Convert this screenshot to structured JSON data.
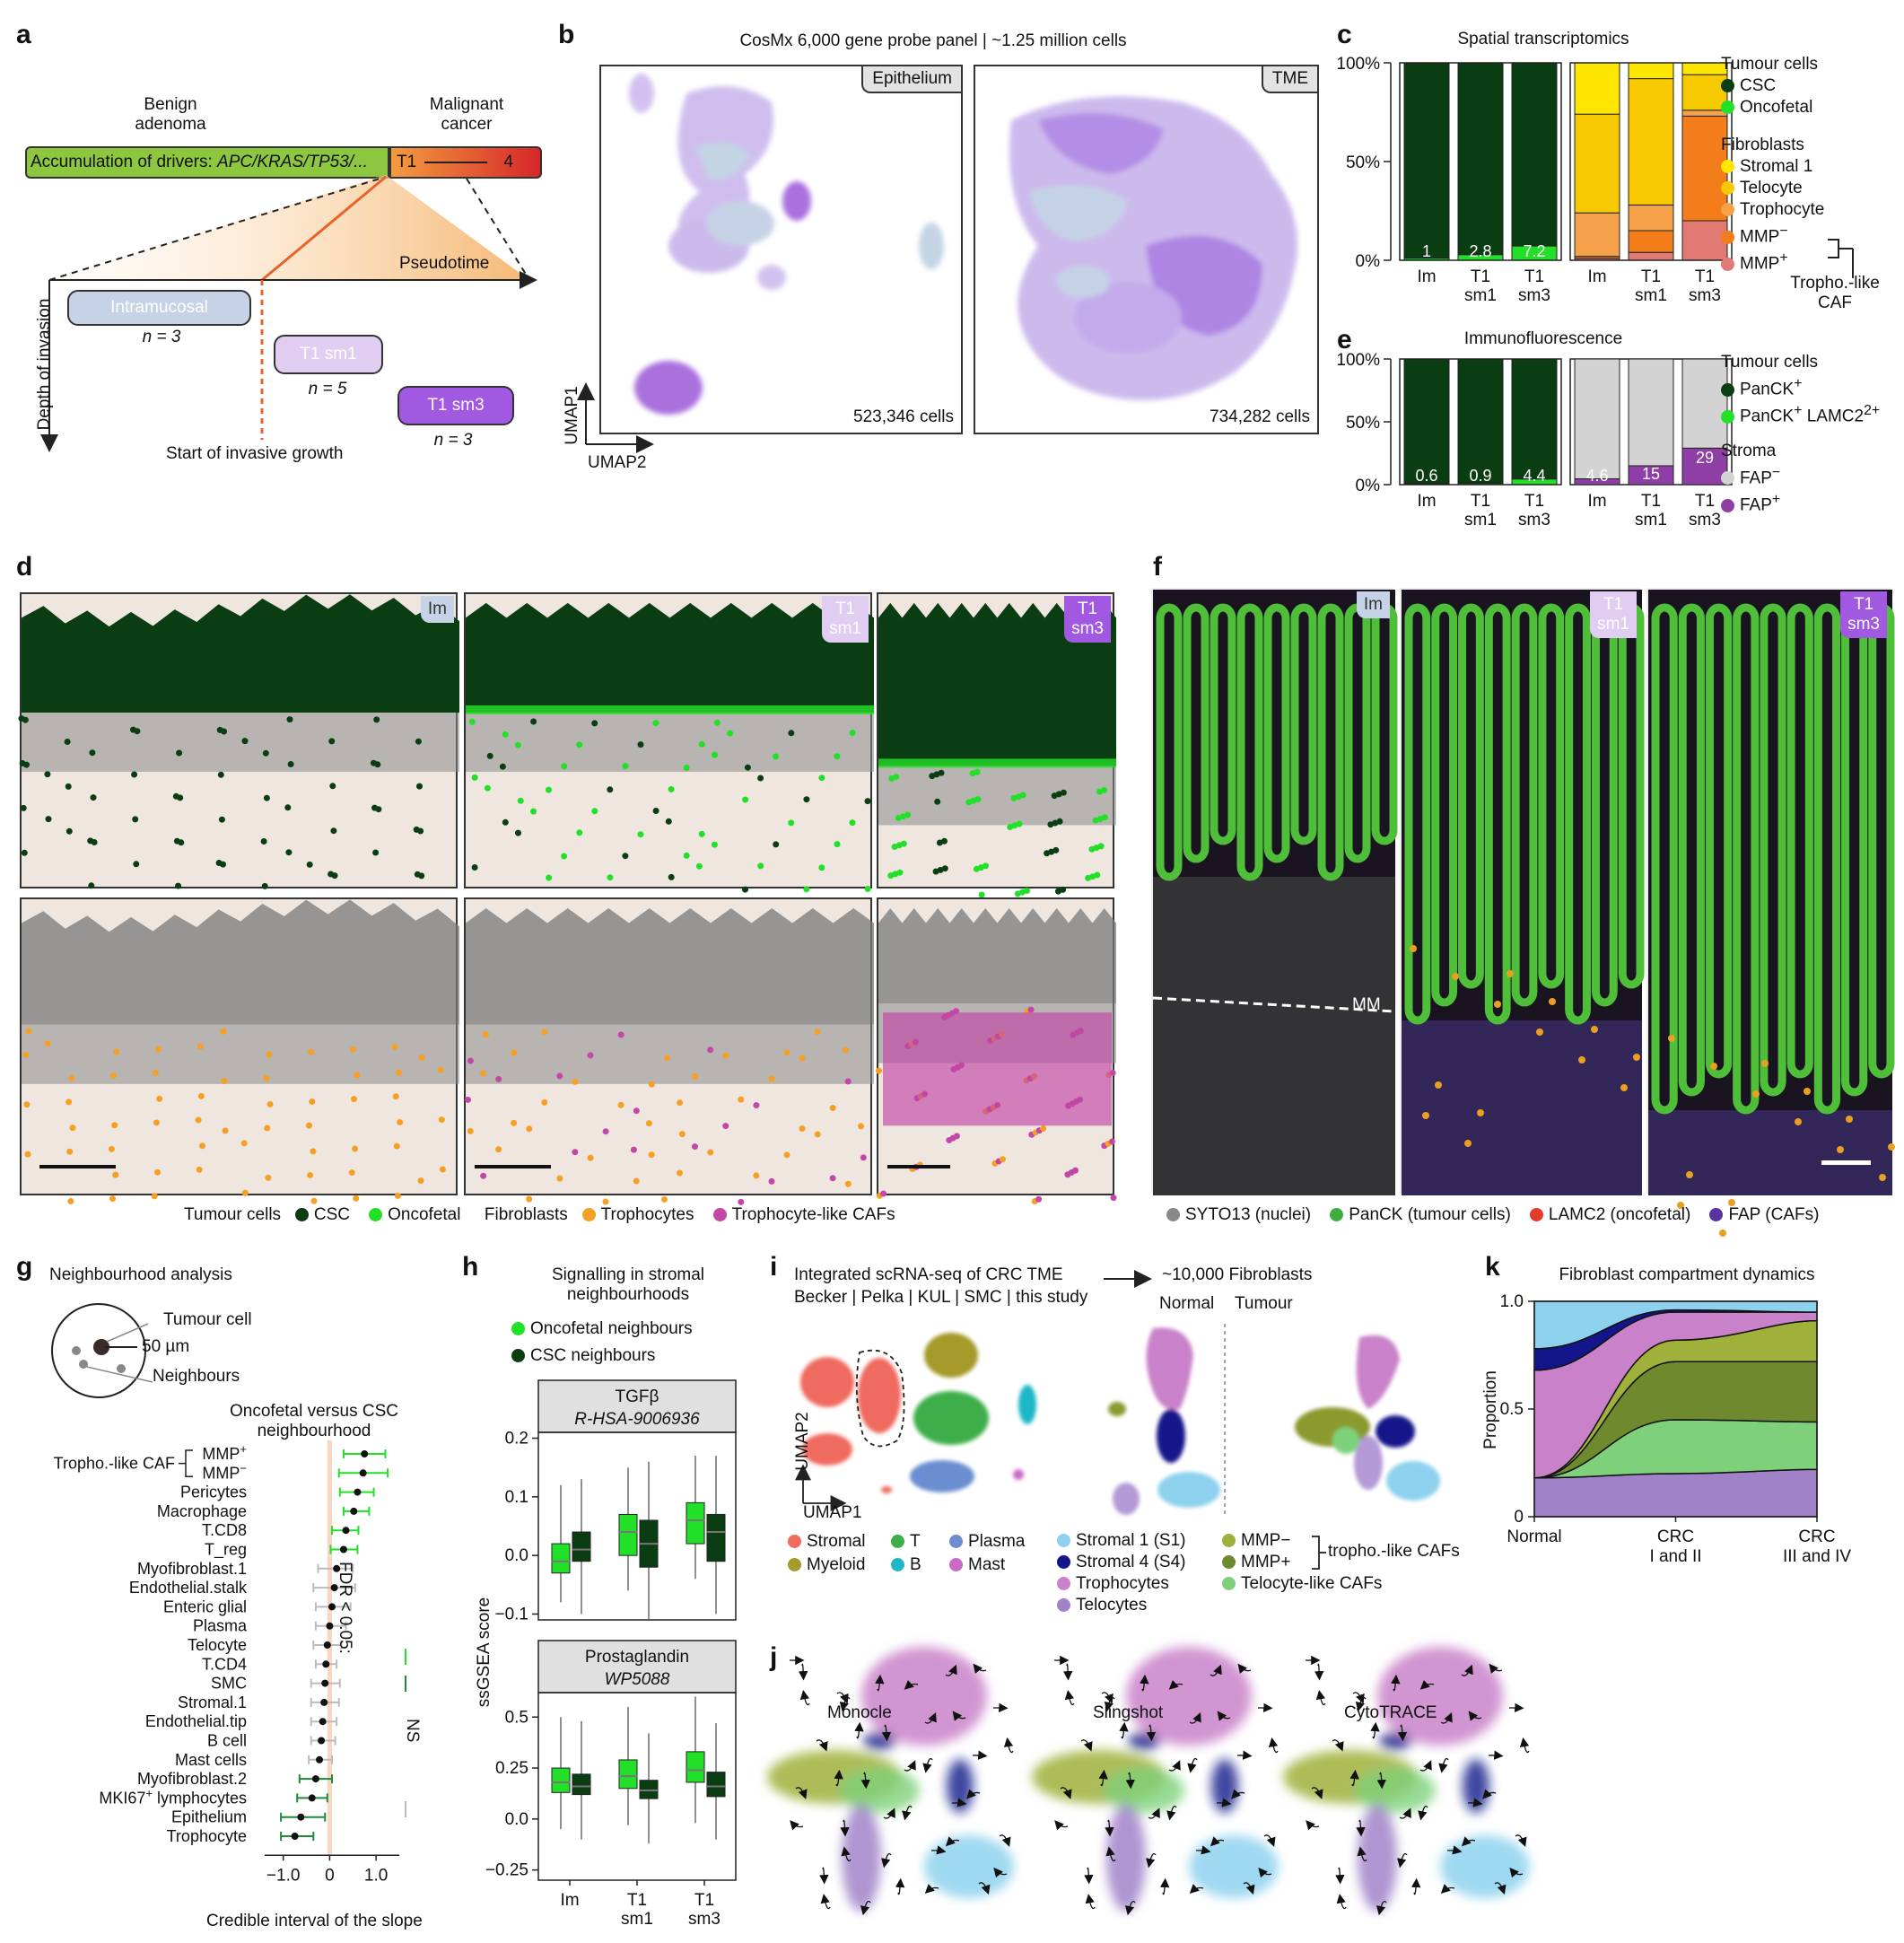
{
  "panels": {
    "a": "a",
    "b": "b",
    "c": "c",
    "d": "d",
    "e": "e",
    "f": "f",
    "g": "g",
    "h": "h",
    "i": "i",
    "j": "j",
    "k": "k"
  },
  "a": {
    "benign_1": "Benign",
    "benign_2": "adenoma",
    "malig_1": "Malignant",
    "malig_2": "cancer",
    "drivers_prefix": "Accumulation of drivers: ",
    "drivers_genes": "APC/KRAS/TP53/...",
    "t1": "T1",
    "stage4": "4",
    "pseudotime": "Pseudotime",
    "depth": "Depth of invasion",
    "intramucosal": "Intramucosal",
    "n_im": "n = 3",
    "t1sm1": "T1 sm1",
    "n_sm1": "n = 5",
    "t1sm3": "T1 sm3",
    "n_sm3": "n = 3",
    "start": "Start of invasive growth"
  },
  "b": {
    "title": "CosMx 6,000 gene probe panel | ~1.25 million cells",
    "epi_tag": "Epithelium",
    "tme_tag": "TME",
    "epi_cells": "523,346 cells",
    "tme_cells": "734,282 cells",
    "umap1": "UMAP1",
    "umap2": "UMAP2"
  },
  "c": {
    "title": "Spatial transcriptomics",
    "y_ticks": [
      "100%",
      "50%",
      "0%"
    ],
    "x_labels": [
      "Im",
      "T1\nsm1",
      "T1\nsm3"
    ],
    "tumour_labels": [
      "1",
      "2.8",
      "7.2"
    ],
    "legend_tumour_title": "Tumour cells",
    "legend_tumour": [
      "CSC",
      "Oncofetal"
    ],
    "legend_fib_title": "Fibroblasts",
    "legend_fib": [
      "Stromal 1",
      "Telocyte",
      "Trophocyte",
      "MMP",
      "MMP"
    ],
    "mmp_sup": [
      "−",
      "+"
    ],
    "tropho_like_1": "Tropho.-like",
    "tropho_like_2": "CAF"
  },
  "e": {
    "title": "Immunofluorescence",
    "y_ticks": [
      "100%",
      "50%",
      "0%"
    ],
    "tumour_labels": [
      "0.6",
      "0.9",
      "4.4"
    ],
    "stroma_labels": [
      "4.6",
      "15",
      "29"
    ],
    "legend_tumour_title": "Tumour cells",
    "legend_tumour_1": "PanCK",
    "legend_tumour_2": "PanCK",
    "legend_tumour_2b": " LAMC2",
    "legend_stroma_title": "Stroma",
    "legend_stroma": [
      "FAP",
      "FAP"
    ]
  },
  "d": {
    "tags": [
      "Im",
      "T1\nsm1",
      "T1\nsm3"
    ],
    "legend_tumour": "Tumour cells",
    "legend_csc": "CSC",
    "legend_onco": "Oncofetal",
    "legend_fib": "Fibroblasts",
    "legend_tropho": "Trophocytes",
    "legend_tlcaf": "Trophocyte-like CAFs"
  },
  "f": {
    "tags": [
      "Im",
      "T1\nsm1",
      "T1\nsm3"
    ],
    "mm": "MM",
    "legend": [
      "SYTO13 (nuclei)",
      "PanCK (tumour cells)",
      "LAMC2 (oncofetal)",
      "FAP (CAFs)"
    ]
  },
  "g": {
    "title": "Neighbourhood analysis",
    "tumour_cell": "Tumour cell",
    "radius": "50 µm",
    "neighbours": "Neighbours",
    "subtitle_1": "Oncofetal versus CSC",
    "subtitle_2": "neighbourhood",
    "tropho_like": "Tropho.-like CAF",
    "fdr": "FDR < 0.05:",
    "ns": "NS",
    "xlabel": "Credible interval of the slope"
  },
  "h": {
    "title_1": "Signalling in stromal",
    "title_2": "neighbourhoods",
    "legend_onco": "Oncofetal neighbours",
    "legend_csc": "CSC neighbours",
    "ylabel": "ssGSEA score"
  },
  "i": {
    "title_1": "Integrated scRNA-seq of CRC TME",
    "title_2": "Becker | Pelka | KUL | SMC | this study",
    "fib_title": "~10,000 Fibroblasts",
    "normal": "Normal",
    "tumour": "Tumour",
    "umap2": "UMAP2",
    "umap1": "UMAP1",
    "legend_left": [
      "Stromal",
      "T",
      "Plasma",
      "Myeloid",
      "B",
      "Mast"
    ],
    "legend_right": [
      "Stromal 1 (S1)",
      "Stromal 4 (S4)",
      "Trophocytes",
      "Telocytes",
      "MMP−",
      "MMP+",
      "Telocyte-like CAFs"
    ],
    "tropho_bracket": "tropho.-like CAFs"
  },
  "j": {
    "methods": [
      "Monocle",
      "Slingshot",
      "CytoTRACE"
    ]
  },
  "k": {
    "title": "Fibroblast compartment dynamics",
    "ylabel": "Proportion"
  },
  "colors": {
    "csc": "#0b3d13",
    "onco": "#22e028",
    "stromal1": "#ffe600",
    "telocyte": "#f6c900",
    "trophocyte": "#f5a24a",
    "mmp_minus": "#f27d1a",
    "mmp_plus": "#e07a72",
    "fap_neg": "#d3d3d3",
    "fap_pos": "#8e3fa6",
    "im": "#c6d3e6",
    "sm1": "#e2cdf2",
    "sm3": "#a259e2"
  },
  "chart_data": [
    {
      "type": "bar",
      "panel": "c-tumour",
      "title": "Spatial transcriptomics",
      "categories": [
        "Im",
        "T1 sm1",
        "T1 sm3"
      ],
      "series": [
        {
          "name": "CSC",
          "values": [
            99.0,
            97.2,
            92.8
          ]
        },
        {
          "name": "Oncofetal",
          "values": [
            1.0,
            2.8,
            7.2
          ]
        }
      ],
      "ylim": [
        0,
        100
      ]
    },
    {
      "type": "bar",
      "panel": "c-fibroblasts",
      "categories": [
        "Im",
        "T1 sm1",
        "T1 sm3"
      ],
      "series": [
        {
          "name": "MMP+",
          "values": [
            1,
            4,
            20
          ]
        },
        {
          "name": "MMP−",
          "values": [
            1,
            11,
            53
          ]
        },
        {
          "name": "Trophocyte",
          "values": [
            22,
            13,
            3
          ]
        },
        {
          "name": "Telocyte",
          "values": [
            50,
            64,
            18
          ]
        },
        {
          "name": "Stromal 1",
          "values": [
            26,
            8,
            6
          ]
        }
      ],
      "ylim": [
        0,
        100
      ]
    },
    {
      "type": "bar",
      "panel": "e-tumour",
      "title": "Immunofluorescence",
      "categories": [
        "Im",
        "T1 sm1",
        "T1 sm3"
      ],
      "series": [
        {
          "name": "PanCK+",
          "values": [
            99.4,
            99.1,
            95.6
          ]
        },
        {
          "name": "PanCK+ LAMC2+",
          "values": [
            0.6,
            0.9,
            4.4
          ]
        }
      ],
      "ylim": [
        0,
        100
      ]
    },
    {
      "type": "bar",
      "panel": "e-stroma",
      "categories": [
        "Im",
        "T1 sm1",
        "T1 sm3"
      ],
      "series": [
        {
          "name": "FAP−",
          "values": [
            95.4,
            85,
            71
          ]
        },
        {
          "name": "FAP+",
          "values": [
            4.6,
            15,
            29
          ]
        }
      ],
      "ylim": [
        0,
        100
      ]
    },
    {
      "type": "scatter",
      "panel": "g",
      "categories": [
        "MMP+",
        "MMP−",
        "Pericytes",
        "Macrophage",
        "T.CD8",
        "T_reg",
        "Myofibroblast.1",
        "Endothelial.stalk",
        "Enteric glial",
        "Plasma",
        "Telocyte",
        "T.CD4",
        "SMC",
        "Stromal.1",
        "Endothelial.tip",
        "B cell",
        "Mast cells",
        "Myofibroblast.2",
        "MKI67+ lymphocytes",
        "Epithelium",
        "Trophocyte"
      ],
      "estimate": [
        0.75,
        0.72,
        0.6,
        0.52,
        0.35,
        0.3,
        0.15,
        0.1,
        0.05,
        0.0,
        -0.05,
        -0.08,
        -0.1,
        -0.12,
        -0.15,
        -0.18,
        -0.22,
        -0.3,
        -0.38,
        -0.62,
        -0.75
      ],
      "lower": [
        0.3,
        0.2,
        0.22,
        0.3,
        0.05,
        0.02,
        -0.25,
        -0.35,
        -0.3,
        -0.3,
        -0.35,
        -0.3,
        -0.4,
        -0.4,
        -0.4,
        -0.4,
        -0.45,
        -0.65,
        -0.7,
        -1.05,
        -1.05
      ],
      "upper": [
        1.2,
        1.25,
        0.95,
        0.85,
        0.62,
        0.6,
        0.5,
        0.55,
        0.45,
        0.35,
        0.25,
        0.15,
        0.22,
        0.2,
        0.15,
        0.12,
        0.05,
        0.05,
        -0.05,
        -0.1,
        -0.35
      ],
      "significant": [
        true,
        true,
        true,
        true,
        true,
        true,
        false,
        false,
        false,
        false,
        false,
        false,
        false,
        false,
        false,
        false,
        false,
        true,
        true,
        true,
        true
      ],
      "xticks": [
        -1.0,
        0,
        1.0
      ],
      "xlim": [
        -1.4,
        1.5
      ],
      "xlabel": "Credible interval of the slope"
    },
    {
      "type": "bar",
      "panel": "h-tgfb",
      "title": "TGFβ",
      "subtitle": "R-HSA-9006936",
      "categories": [
        "Im",
        "T1 sm1",
        "T1 sm3"
      ],
      "series": [
        {
          "name": "Oncofetal neighbours",
          "q1": [
            -0.03,
            0.0,
            0.02
          ],
          "median": [
            -0.01,
            0.04,
            0.06
          ],
          "q3": [
            0.02,
            0.07,
            0.09
          ],
          "wlo": [
            -0.08,
            -0.06,
            -0.04
          ],
          "whi": [
            0.12,
            0.15,
            0.17
          ]
        },
        {
          "name": "CSC neighbours",
          "q1": [
            -0.01,
            -0.02,
            -0.01
          ],
          "median": [
            0.01,
            0.02,
            0.04
          ],
          "q3": [
            0.04,
            0.06,
            0.07
          ],
          "wlo": [
            -0.1,
            -0.11,
            -0.1
          ],
          "whi": [
            0.13,
            0.16,
            0.17
          ]
        }
      ],
      "yticks": [
        -0.1,
        0.0,
        0.1,
        0.2
      ],
      "ylim": [
        -0.11,
        0.21
      ]
    },
    {
      "type": "bar",
      "panel": "h-prostaglandin",
      "title": "Prostaglandin",
      "subtitle": "WP5088",
      "categories": [
        "Im",
        "T1 sm1",
        "T1 sm3"
      ],
      "series": [
        {
          "name": "Oncofetal neighbours",
          "q1": [
            0.13,
            0.15,
            0.18
          ],
          "median": [
            0.18,
            0.21,
            0.24
          ],
          "q3": [
            0.25,
            0.29,
            0.33
          ],
          "wlo": [
            -0.05,
            -0.03,
            -0.02
          ],
          "whi": [
            0.5,
            0.55,
            0.6
          ]
        },
        {
          "name": "CSC neighbours",
          "q1": [
            0.12,
            0.1,
            0.11
          ],
          "median": [
            0.16,
            0.14,
            0.16
          ],
          "q3": [
            0.22,
            0.19,
            0.23
          ],
          "wlo": [
            -0.1,
            -0.12,
            -0.1
          ],
          "whi": [
            0.48,
            0.42,
            0.47
          ]
        }
      ],
      "yticks": [
        -0.25,
        0.0,
        0.25,
        0.5
      ],
      "ylim": [
        -0.3,
        0.62
      ]
    },
    {
      "type": "area",
      "panel": "k",
      "title": "Fibroblast compartment dynamics",
      "x": [
        "Normal",
        "CRC\nI and II",
        "CRC\nIII and IV"
      ],
      "ylabel": "Proportion",
      "ylim": [
        0,
        1.0
      ],
      "yticks": [
        0,
        0.5,
        1.0
      ],
      "series": [
        {
          "name": "Telocytes",
          "values": [
            0.18,
            0.2,
            0.22
          ],
          "color": "#a182c9"
        },
        {
          "name": "Telocyte-like CAFs",
          "values": [
            0.0,
            0.25,
            0.22
          ],
          "color": "#7ed17a"
        },
        {
          "name": "MMP+",
          "values": [
            0.0,
            0.27,
            0.28
          ],
          "color": "#6f8a2e"
        },
        {
          "name": "MMP−",
          "values": [
            0.0,
            0.1,
            0.19
          ],
          "color": "#9fb03b"
        },
        {
          "name": "Trophocytes",
          "values": [
            0.5,
            0.13,
            0.04
          ],
          "color": "#c982c9"
        },
        {
          "name": "Stromal 4 (S4)",
          "values": [
            0.1,
            0.01,
            0.0
          ],
          "color": "#13158a"
        },
        {
          "name": "Stromal 1 (S1)",
          "values": [
            0.22,
            0.04,
            0.05
          ],
          "color": "#8ed1ee"
        }
      ]
    }
  ]
}
